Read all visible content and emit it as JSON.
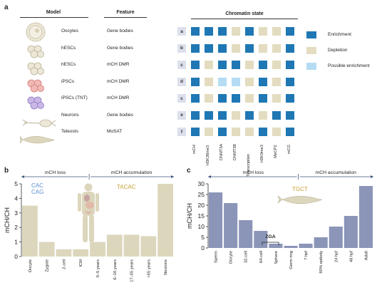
{
  "panel_a": {
    "letter": "a",
    "model_header": "Model",
    "feature_header": "Feature",
    "chromatin_header": "Chromatin state",
    "rows": [
      {
        "model": "Oocytes",
        "feature": "Gene bodies",
        "label": "a"
      },
      {
        "model": "hESCs",
        "feature": "Gene bodies",
        "label": "b"
      },
      {
        "model": "hESCs",
        "feature": "mCH DMR",
        "label": "c"
      },
      {
        "model": "iPSCs",
        "feature": "mCH DMR",
        "label": "d"
      },
      {
        "model": "iPSCs (TNT)",
        "feature": "mCH DMR",
        "label": "c"
      },
      {
        "model": "Neurons",
        "feature": "Gene bodies",
        "label": "e"
      },
      {
        "model": "Teleosts",
        "feature": "MoSAT",
        "label": "f"
      }
    ],
    "columns": [
      "mCH",
      "H3K36me3",
      "DNMT3A",
      "DNMT3B",
      "Transcription",
      "H3K9me3",
      "MeCP2",
      "mCG"
    ],
    "grid": [
      [
        "E",
        "E",
        "E",
        "D",
        "E",
        "D",
        "D",
        "E"
      ],
      [
        "E",
        "E",
        "E",
        "D",
        "E",
        "D",
        "D",
        "E"
      ],
      [
        "E",
        "D",
        "E",
        "E",
        "D",
        "E",
        "D",
        "E"
      ],
      [
        "E",
        "D",
        "P",
        "P",
        "D",
        "E",
        "D",
        "E"
      ],
      [
        "E",
        "D",
        "E",
        "E",
        "D",
        "E",
        "D",
        "E"
      ],
      [
        "E",
        "E",
        "E",
        "D",
        "E",
        "D",
        "E",
        "E"
      ],
      [
        "E",
        "D",
        "E",
        "D",
        "D",
        "E",
        "D",
        "E"
      ]
    ],
    "legend": [
      {
        "key": "E",
        "label": "Enrichment",
        "color": "#1f77b4"
      },
      {
        "key": "D",
        "label": "Depletion",
        "color": "#e3dcc0"
      },
      {
        "key": "P",
        "label": "Possible enrichment",
        "color": "#b5dcf3"
      }
    ]
  },
  "panel_b": {
    "letter": "b",
    "loss_label": "mCH loss",
    "accum_label": "mCH accumulation",
    "motifs_left": [
      "CAC",
      "CAG"
    ],
    "motif_right": "TACAC",
    "chart_data": {
      "type": "bar",
      "categories": [
        "Oocyte",
        "Zygote",
        "2-cell",
        "ICM",
        "0–5 years",
        "6–16 years",
        "17–55 years",
        ">55 years",
        "Neurons"
      ],
      "values": [
        3.5,
        1.0,
        0.5,
        0.5,
        1.0,
        1.5,
        1.5,
        1.4,
        5.0
      ],
      "ylabel": "mCH/CH",
      "ylim": [
        0,
        5
      ],
      "yticks": [
        0,
        1,
        2,
        3,
        4,
        5
      ],
      "color": "#dcd6bc"
    }
  },
  "panel_c": {
    "letter": "c",
    "loss_label": "mCH loss",
    "accum_label": "mCH accumulation",
    "motif": "TGCT",
    "zga_label": "ZGA",
    "chart_data": {
      "type": "bar",
      "categories": [
        "Sperm",
        "Oocyte",
        "32-cell",
        "64-cell",
        "Sphere",
        "Germ ring",
        "7 hpf",
        "80% epiboly",
        "24 hpf",
        "48 hpf",
        "Adult"
      ],
      "values": [
        26,
        21,
        13,
        8,
        2,
        1,
        2,
        5,
        10,
        15,
        29
      ],
      "ylabel": "mCH/CH",
      "ylim": [
        0,
        30
      ],
      "yticks": [
        0,
        5,
        10,
        15,
        20,
        25,
        30
      ],
      "color": "#8b95b8"
    }
  }
}
